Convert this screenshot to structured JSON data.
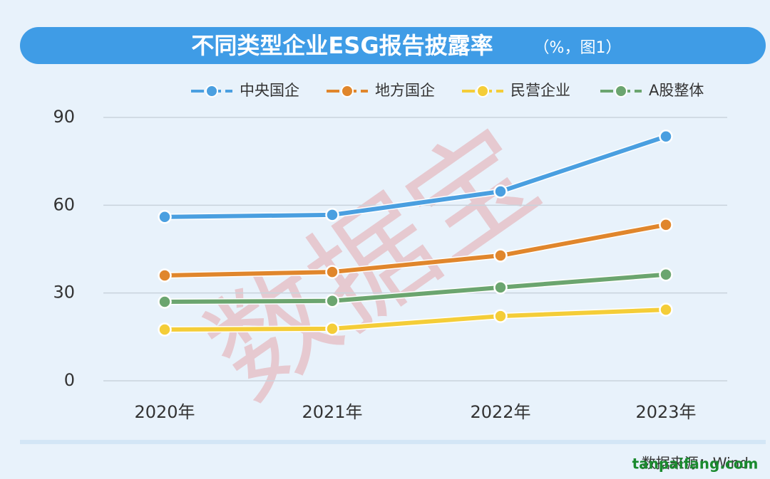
{
  "chart_data": {
    "type": "line",
    "title": "不同类型企业ESG报告披露率",
    "subtitle": "（%，图1）",
    "categories": [
      "2020年",
      "2021年",
      "2022年",
      "2023年"
    ],
    "series": [
      {
        "name": "中央国企",
        "color": "#4a9fe0",
        "values": [
          56.0,
          56.7,
          64.7,
          83.5
        ]
      },
      {
        "name": "地方国企",
        "color": "#e0862c",
        "values": [
          36.0,
          37.2,
          42.8,
          53.3
        ]
      },
      {
        "name": "民营企业",
        "color": "#f4cd38",
        "values": [
          17.5,
          17.8,
          22.1,
          24.3
        ]
      },
      {
        "name": "A股整体",
        "color": "#6ba56f",
        "values": [
          27.0,
          27.3,
          31.9,
          36.3
        ]
      }
    ],
    "ylim": [
      0,
      90
    ],
    "yticks": [
      0,
      30,
      60,
      90
    ],
    "grid": true,
    "legend": "top",
    "source": "数据来源：Wind",
    "watermark": "数据宝",
    "site": "tanpaifang.com"
  }
}
